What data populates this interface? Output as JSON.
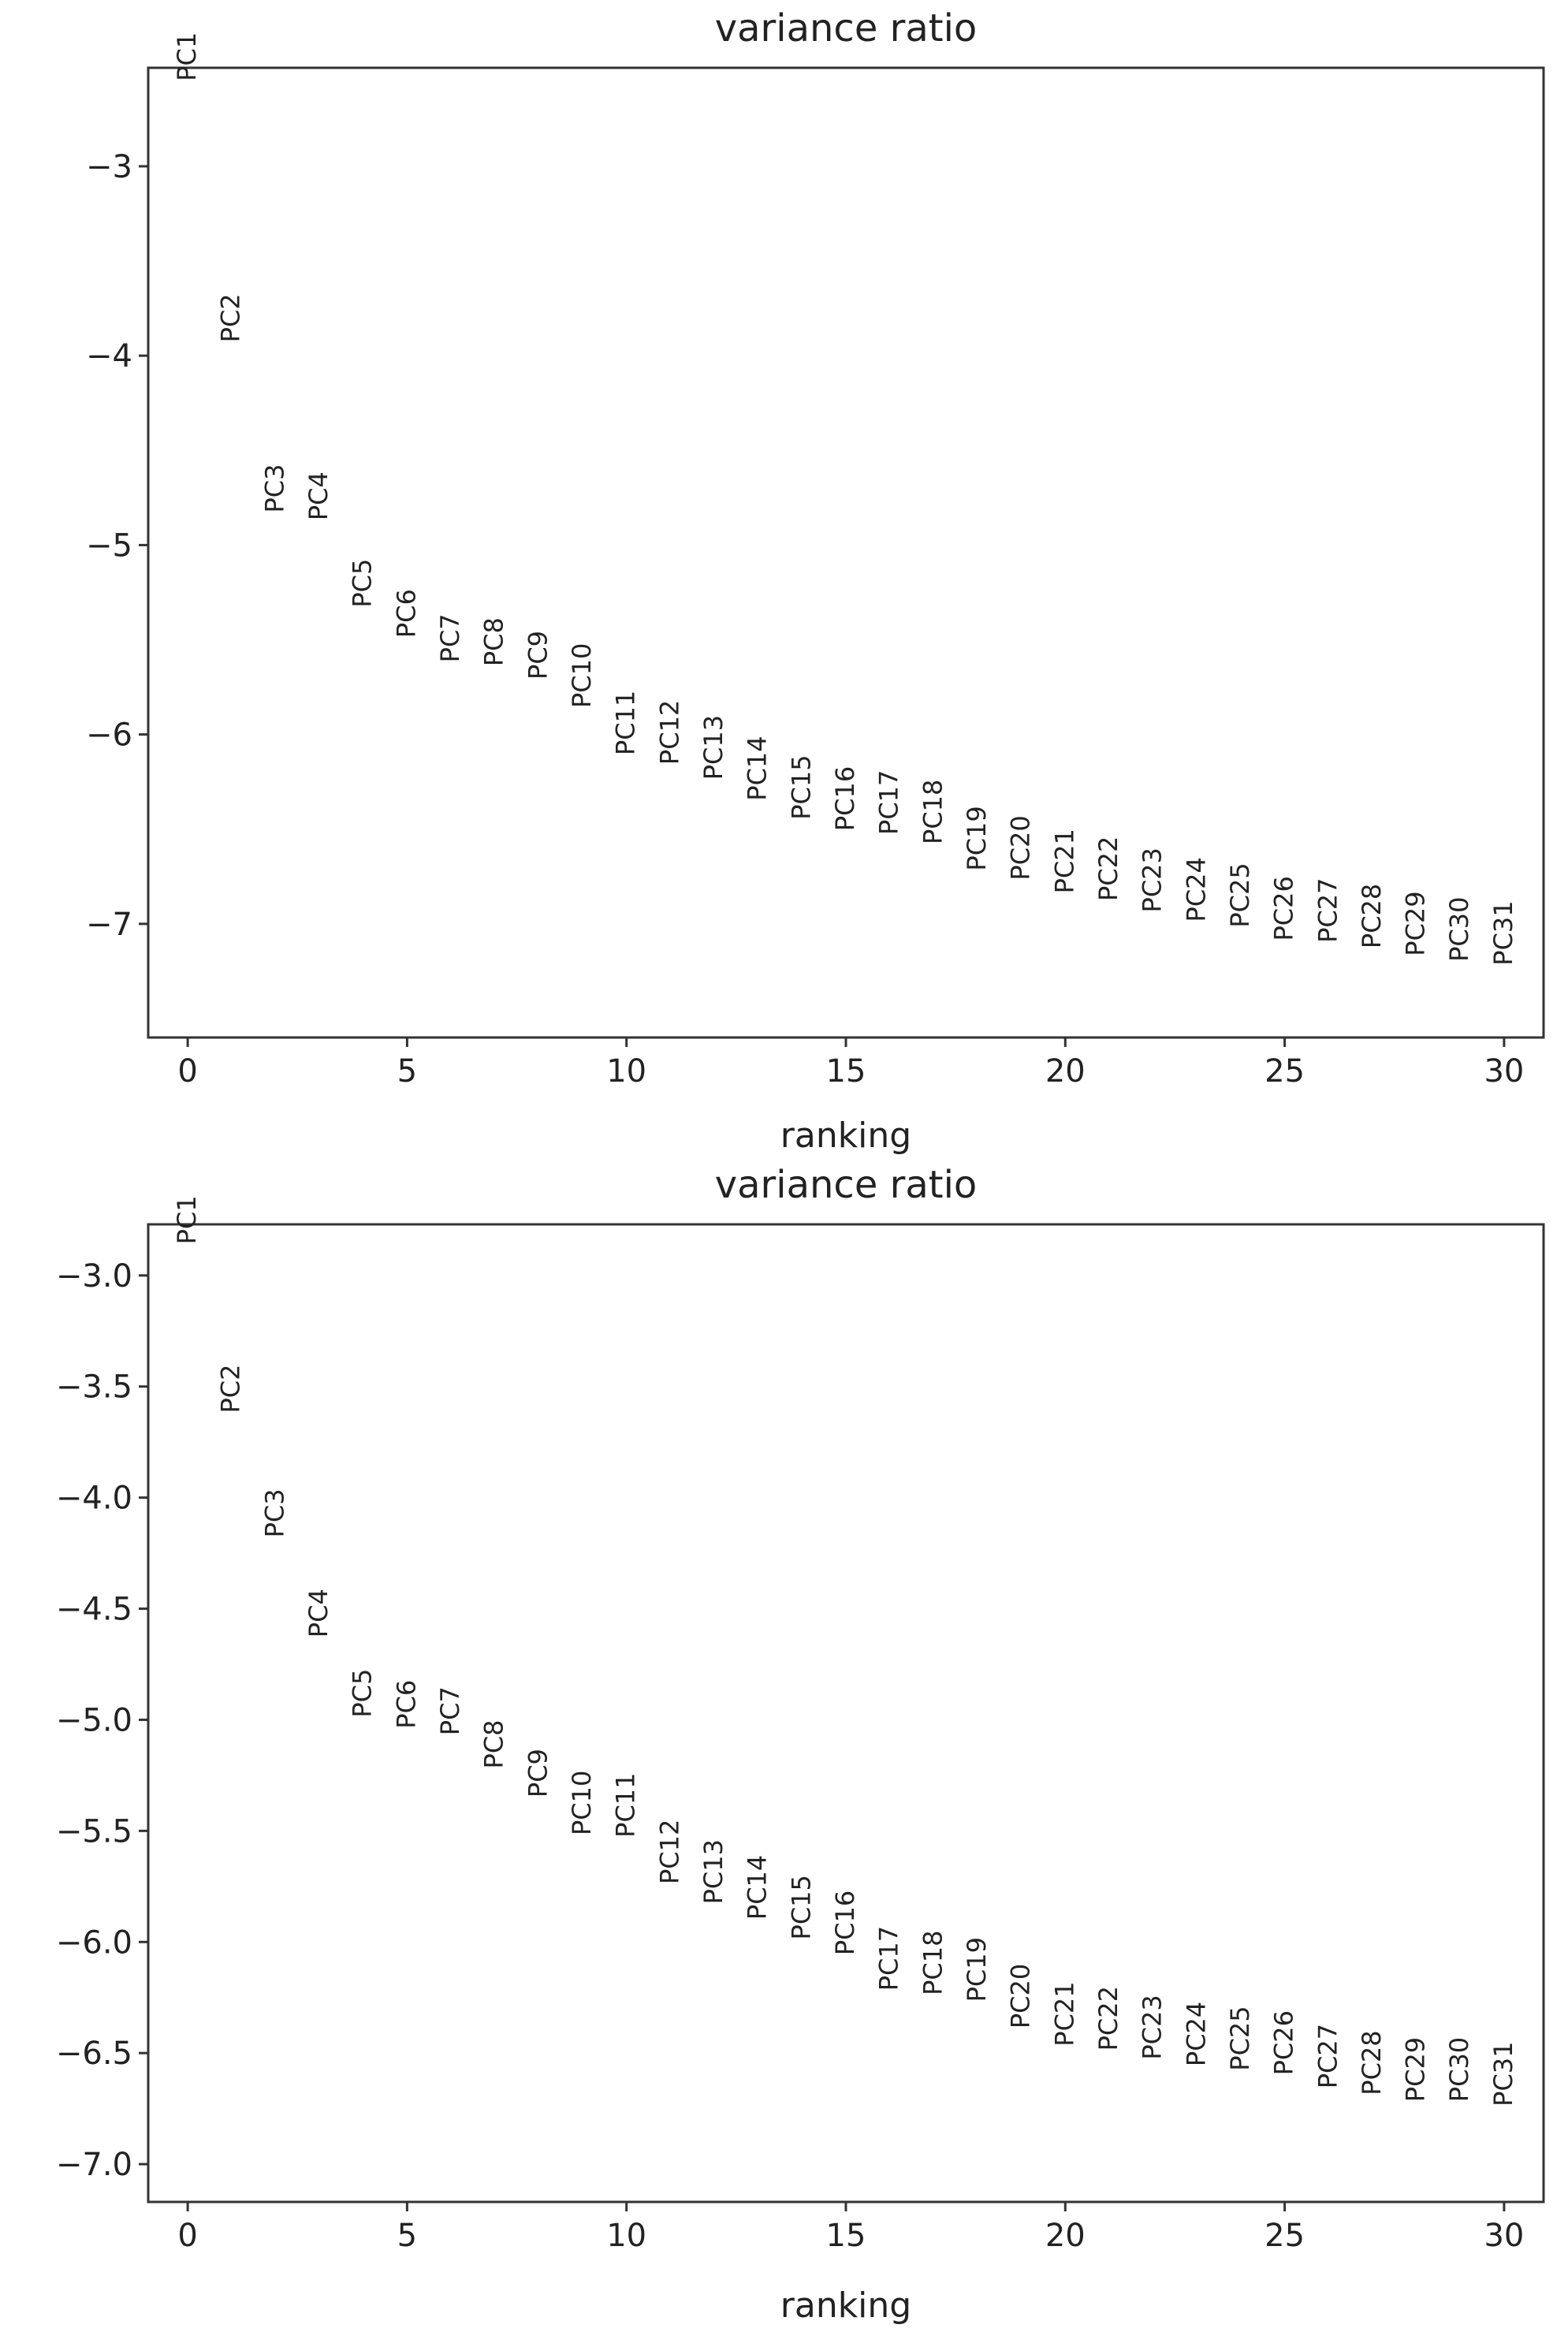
{
  "chart_data": [
    {
      "type": "scatter",
      "title": "variance ratio",
      "xlabel": "ranking",
      "ylabel": "",
      "xlim": [
        -0.9,
        30.9
      ],
      "ylim": [
        -7.6,
        -2.48
      ],
      "xticks": [
        "0",
        "5",
        "10",
        "15",
        "20",
        "25",
        "30"
      ],
      "yticks": [
        "−3",
        "−4",
        "−5",
        "−6",
        "−7"
      ],
      "labels": [
        "PC1",
        "PC2",
        "PC3",
        "PC4",
        "PC5",
        "PC6",
        "PC7",
        "PC8",
        "PC9",
        "PC10",
        "PC11",
        "PC12",
        "PC13",
        "PC14",
        "PC15",
        "PC16",
        "PC17",
        "PC18",
        "PC19",
        "PC20",
        "PC21",
        "PC22",
        "PC23",
        "PC24",
        "PC25",
        "PC26",
        "PC27",
        "PC28",
        "PC29",
        "PC30",
        "PC31"
      ],
      "x": [
        0,
        1,
        2,
        3,
        4,
        5,
        6,
        7,
        8,
        9,
        10,
        11,
        12,
        13,
        14,
        15,
        16,
        17,
        18,
        19,
        20,
        21,
        22,
        23,
        24,
        25,
        26,
        27,
        28,
        29,
        30
      ],
      "y": [
        -2.55,
        -3.93,
        -4.83,
        -4.87,
        -5.33,
        -5.49,
        -5.62,
        -5.64,
        -5.71,
        -5.86,
        -6.11,
        -6.16,
        -6.24,
        -6.35,
        -6.45,
        -6.51,
        -6.53,
        -6.58,
        -6.72,
        -6.77,
        -6.84,
        -6.88,
        -6.94,
        -6.99,
        -7.02,
        -7.09,
        -7.1,
        -7.13,
        -7.17,
        -7.2,
        -7.22
      ]
    },
    {
      "type": "scatter",
      "title": "variance ratio",
      "xlabel": "ranking",
      "ylabel": "",
      "xlim": [
        -0.9,
        30.9
      ],
      "ylim": [
        -7.17,
        -2.77
      ],
      "xticks": [
        "0",
        "5",
        "10",
        "15",
        "20",
        "25",
        "30"
      ],
      "yticks": [
        "−3.0",
        "−3.5",
        "−4.0",
        "−4.5",
        "−5.0",
        "−5.5",
        "−6.0",
        "−6.5",
        "−7.0"
      ],
      "labels": [
        "PC1",
        "PC2",
        "PC3",
        "PC4",
        "PC5",
        "PC6",
        "PC7",
        "PC8",
        "PC9",
        "PC10",
        "PC11",
        "PC12",
        "PC13",
        "PC14",
        "PC15",
        "PC16",
        "PC17",
        "PC18",
        "PC19",
        "PC20",
        "PC21",
        "PC22",
        "PC23",
        "PC24",
        "PC25",
        "PC26",
        "PC27",
        "PC28",
        "PC29",
        "PC30",
        "PC31"
      ],
      "x": [
        0,
        1,
        2,
        3,
        4,
        5,
        6,
        7,
        8,
        9,
        10,
        11,
        12,
        13,
        14,
        15,
        16,
        17,
        18,
        19,
        20,
        21,
        22,
        23,
        24,
        25,
        26,
        27,
        28,
        29,
        30
      ],
      "y": [
        -2.86,
        -3.62,
        -4.18,
        -4.63,
        -4.99,
        -5.04,
        -5.07,
        -5.22,
        -5.35,
        -5.52,
        -5.53,
        -5.74,
        -5.83,
        -5.9,
        -5.99,
        -6.06,
        -6.22,
        -6.24,
        -6.27,
        -6.39,
        -6.47,
        -6.49,
        -6.53,
        -6.56,
        -6.58,
        -6.6,
        -6.66,
        -6.69,
        -6.72,
        -6.72,
        -6.74
      ]
    }
  ]
}
